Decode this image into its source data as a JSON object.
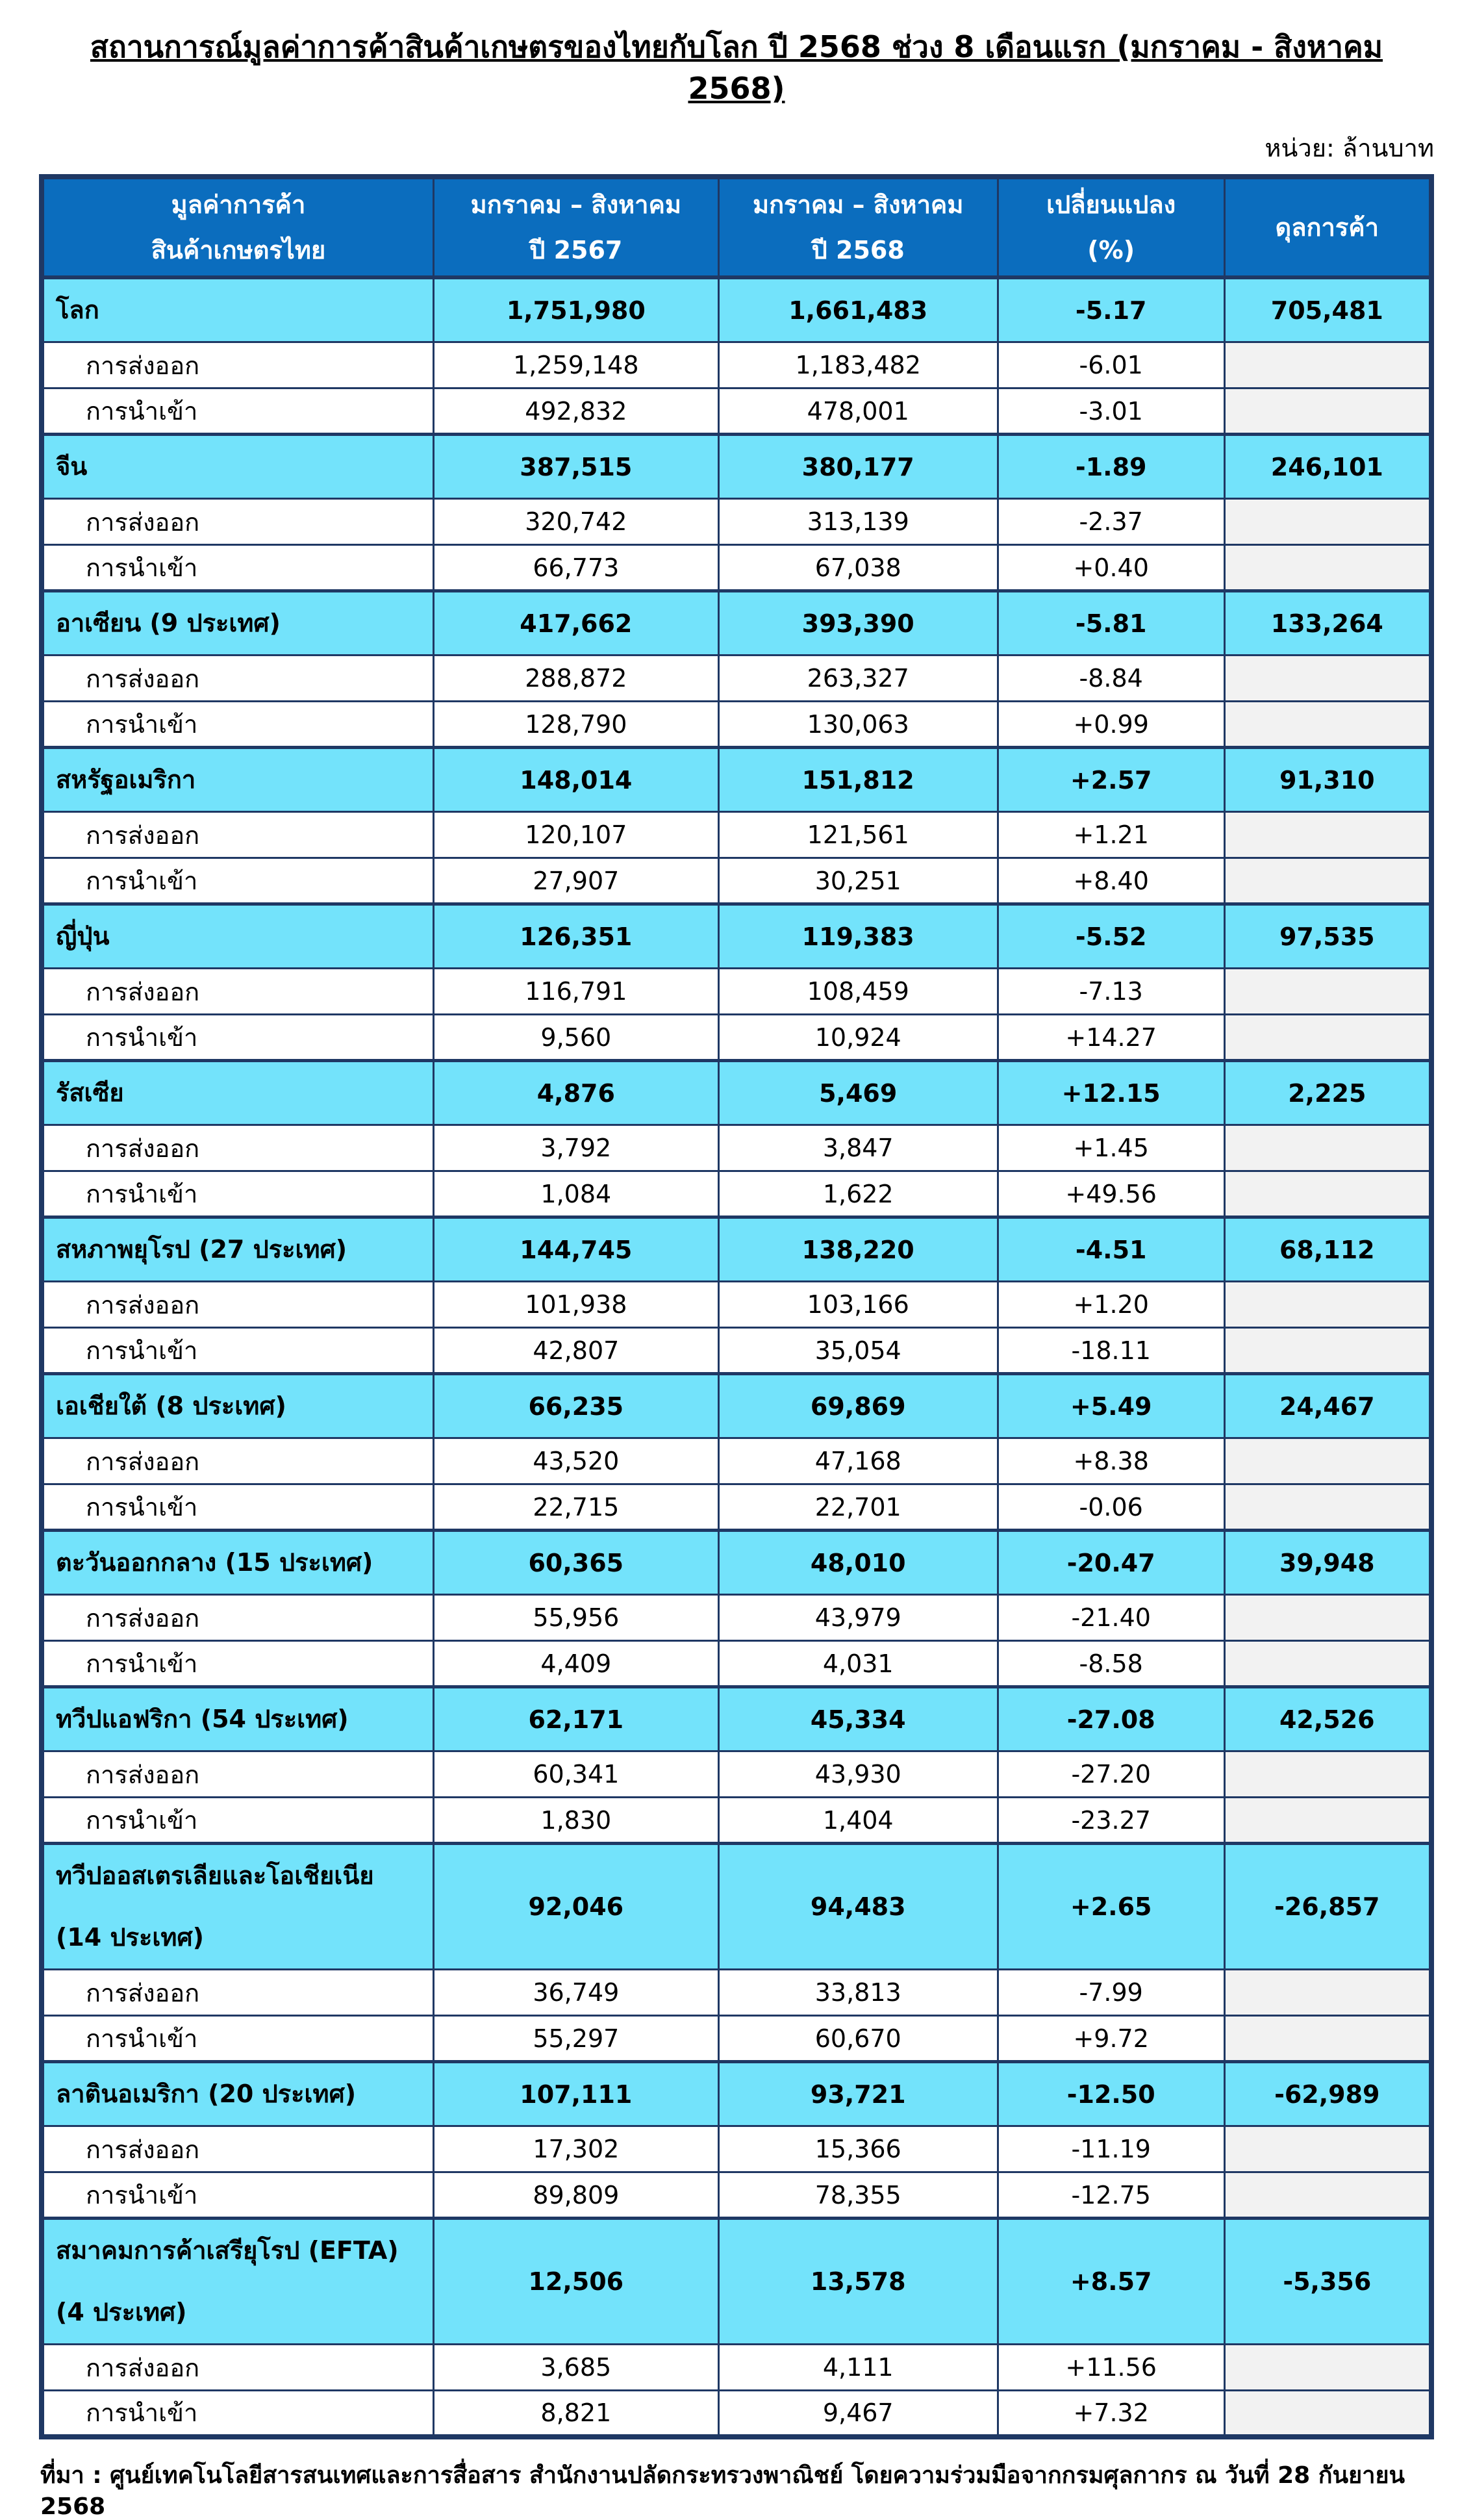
{
  "page": {
    "title": "สถานการณ์มูลค่าการค้าสินค้าเกษตรของไทยกับโลก ปี 2568 ช่วง 8 เดือนแรก (มกราคม - สิงหาคม 2568)",
    "unit_label": "หน่วย: ล้านบาท",
    "source_note": "ที่มา : ศูนย์เทคโนโลยีสารสนเทศและการสื่อสาร สำนักงานปลัดกระทรวงพาณิชย์ โดยความร่วมมือจากกรมศุลกากร ณ วันที่ 28 กันยายน 2568"
  },
  "colors": {
    "header_blue": "#0B6DBE",
    "region_row_cyan": "#73E3FB",
    "border_navy": "#1F3864",
    "empty_balance_gray": "#F2F2F2"
  },
  "table": {
    "columns": [
      "มูลค่าการค้า\nสินค้าเกษตรไทย",
      "มกราคม – สิงหาคม\nปี 2567",
      "มกราคม – สิงหาคม\nปี 2568",
      "เปลี่ยนแปลง\n(%)",
      "ดุลการค้า\n "
    ],
    "export_row_label": "การส่งออก",
    "import_row_label": "การนำเข้า",
    "sections": [
      {
        "name": "โลก",
        "y2567": "1,751,980",
        "y2568": "1,661,483",
        "change": "-5.17",
        "balance": "705,481",
        "exports": {
          "y2567": "1,259,148",
          "y2568": "1,183,482",
          "change": "-6.01"
        },
        "imports": {
          "y2567": "492,832",
          "y2568": "478,001",
          "change": "-3.01"
        }
      },
      {
        "name": "จีน",
        "y2567": "387,515",
        "y2568": "380,177",
        "change": "-1.89",
        "balance": "246,101",
        "exports": {
          "y2567": "320,742",
          "y2568": "313,139",
          "change": "-2.37"
        },
        "imports": {
          "y2567": "66,773",
          "y2568": "67,038",
          "change": "+0.40"
        }
      },
      {
        "name": "อาเซียน (9 ประเทศ)",
        "y2567": "417,662",
        "y2568": "393,390",
        "change": "-5.81",
        "balance": "133,264",
        "exports": {
          "y2567": "288,872",
          "y2568": "263,327",
          "change": "-8.84"
        },
        "imports": {
          "y2567": "128,790",
          "y2568": "130,063",
          "change": "+0.99"
        }
      },
      {
        "name": "สหรัฐอเมริกา",
        "y2567": "148,014",
        "y2568": "151,812",
        "change": "+2.57",
        "balance": "91,310",
        "exports": {
          "y2567": "120,107",
          "y2568": "121,561",
          "change": "+1.21"
        },
        "imports": {
          "y2567": "27,907",
          "y2568": "30,251",
          "change": "+8.40"
        }
      },
      {
        "name": "ญี่ปุ่น",
        "y2567": "126,351",
        "y2568": "119,383",
        "change": "-5.52",
        "balance": "97,535",
        "exports": {
          "y2567": "116,791",
          "y2568": "108,459",
          "change": "-7.13"
        },
        "imports": {
          "y2567": "9,560",
          "y2568": "10,924",
          "change": "+14.27"
        }
      },
      {
        "name": "รัสเซีย",
        "y2567": "4,876",
        "y2568": "5,469",
        "change": "+12.15",
        "balance": "2,225",
        "exports": {
          "y2567": "3,792",
          "y2568": "3,847",
          "change": "+1.45"
        },
        "imports": {
          "y2567": "1,084",
          "y2568": "1,622",
          "change": "+49.56"
        }
      },
      {
        "name": "สหภาพยุโรป (27 ประเทศ)",
        "y2567": "144,745",
        "y2568": "138,220",
        "change": "-4.51",
        "balance": "68,112",
        "exports": {
          "y2567": "101,938",
          "y2568": "103,166",
          "change": "+1.20"
        },
        "imports": {
          "y2567": "42,807",
          "y2568": "35,054",
          "change": "-18.11"
        }
      },
      {
        "name": "เอเชียใต้ (8 ประเทศ)",
        "y2567": "66,235",
        "y2568": "69,869",
        "change": "+5.49",
        "balance": "24,467",
        "exports": {
          "y2567": "43,520",
          "y2568": "47,168",
          "change": "+8.38"
        },
        "imports": {
          "y2567": "22,715",
          "y2568": "22,701",
          "change": "-0.06"
        }
      },
      {
        "name": "ตะวันออกกลาง (15 ประเทศ)",
        "y2567": "60,365",
        "y2568": "48,010",
        "change": "-20.47",
        "balance": "39,948",
        "exports": {
          "y2567": "55,956",
          "y2568": "43,979",
          "change": "-21.40"
        },
        "imports": {
          "y2567": "4,409",
          "y2568": "4,031",
          "change": "-8.58"
        }
      },
      {
        "name": "ทวีปแอฟริกา (54 ประเทศ)",
        "y2567": "62,171",
        "y2568": "45,334",
        "change": "-27.08",
        "balance": "42,526",
        "exports": {
          "y2567": "60,341",
          "y2568": "43,930",
          "change": "-27.20"
        },
        "imports": {
          "y2567": "1,830",
          "y2568": "1,404",
          "change": "-23.27"
        }
      },
      {
        "name": "ทวีปออสเตรเลียและโอเชียเนีย\n(14 ประเทศ)",
        "y2567": "92,046",
        "y2568": "94,483",
        "change": "+2.65",
        "balance": "-26,857",
        "exports": {
          "y2567": "36,749",
          "y2568": "33,813",
          "change": "-7.99"
        },
        "imports": {
          "y2567": "55,297",
          "y2568": "60,670",
          "change": "+9.72"
        }
      },
      {
        "name": "ลาตินอเมริกา (20 ประเทศ)",
        "y2567": "107,111",
        "y2568": "93,721",
        "change": "-12.50",
        "balance": "-62,989",
        "exports": {
          "y2567": "17,302",
          "y2568": "15,366",
          "change": "-11.19"
        },
        "imports": {
          "y2567": "89,809",
          "y2568": "78,355",
          "change": "-12.75"
        }
      },
      {
        "name": "สมาคมการค้าเสรียุโรป (EFTA)\n(4 ประเทศ)",
        "y2567": "12,506",
        "y2568": "13,578",
        "change": "+8.57",
        "balance": "-5,356",
        "exports": {
          "y2567": "3,685",
          "y2568": "4,111",
          "change": "+11.56"
        },
        "imports": {
          "y2567": "8,821",
          "y2568": "9,467",
          "change": "+7.32"
        }
      }
    ]
  }
}
